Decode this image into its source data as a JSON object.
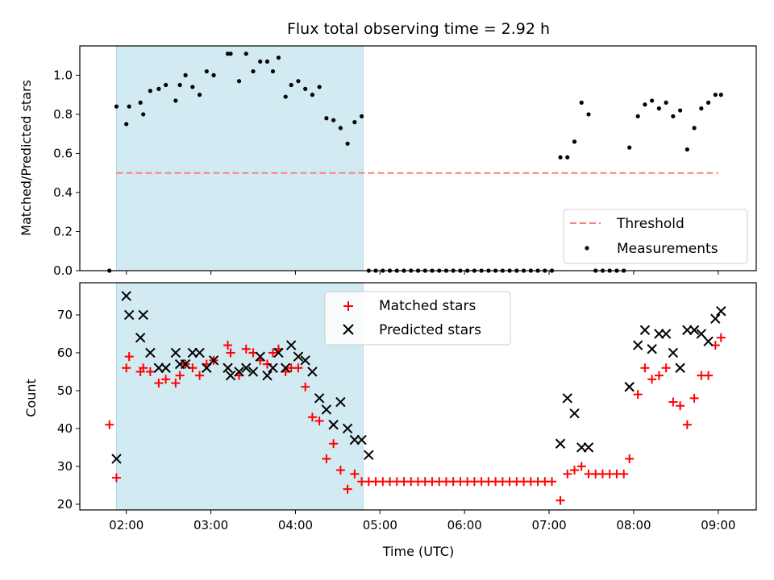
{
  "colors": {
    "shade": "#add8e6",
    "threshold": "#ff7f7f",
    "measurement": "#000000",
    "matched": "#ff0000",
    "predicted": "#000000"
  },
  "chart_data": [
    {
      "type": "scatter",
      "title": "Flux total observing time = 2.92 h",
      "xlabel": "",
      "ylabel": "Matched/Predicted stars",
      "xlim": [
        "01:27",
        "09:27"
      ],
      "ylim": [
        0,
        1.15
      ],
      "yticks": [
        "0.0",
        "0.2",
        "0.4",
        "0.6",
        "0.8",
        "1.0"
      ],
      "shaded_span": [
        "01:53",
        "04:48"
      ],
      "legend_position": "lower-right",
      "threshold": {
        "name": "Threshold",
        "value": 0.5,
        "x_range": [
          "01:53",
          "09:00"
        ]
      },
      "measurements": {
        "name": "Measurements",
        "points": [
          [
            "01:48",
            0.0
          ],
          [
            "01:53",
            0.84
          ],
          [
            "02:00",
            0.75
          ],
          [
            "02:02",
            0.84
          ],
          [
            "02:10",
            0.86
          ],
          [
            "02:12",
            0.8
          ],
          [
            "02:17",
            0.92
          ],
          [
            "02:23",
            0.93
          ],
          [
            "02:28",
            0.95
          ],
          [
            "02:35",
            0.87
          ],
          [
            "02:38",
            0.95
          ],
          [
            "02:42",
            1.0
          ],
          [
            "02:47",
            0.94
          ],
          [
            "02:52",
            0.9
          ],
          [
            "02:57",
            1.02
          ],
          [
            "03:02",
            1.0
          ],
          [
            "03:12",
            1.11
          ],
          [
            "03:14",
            1.11
          ],
          [
            "03:20",
            0.97
          ],
          [
            "03:25",
            1.11
          ],
          [
            "03:30",
            1.02
          ],
          [
            "03:35",
            1.07
          ],
          [
            "03:40",
            1.07
          ],
          [
            "03:44",
            1.02
          ],
          [
            "03:48",
            1.09
          ],
          [
            "03:53",
            0.89
          ],
          [
            "03:57",
            0.95
          ],
          [
            "04:02",
            0.97
          ],
          [
            "04:07",
            0.93
          ],
          [
            "04:12",
            0.9
          ],
          [
            "04:17",
            0.94
          ],
          [
            "04:22",
            0.78
          ],
          [
            "04:27",
            0.77
          ],
          [
            "04:32",
            0.73
          ],
          [
            "04:37",
            0.65
          ],
          [
            "04:42",
            0.76
          ],
          [
            "04:47",
            0.79
          ],
          [
            "04:52",
            0.0
          ],
          [
            "04:57",
            0.0
          ],
          [
            "05:02",
            0.0
          ],
          [
            "05:07",
            0.0
          ],
          [
            "05:12",
            0.0
          ],
          [
            "05:17",
            0.0
          ],
          [
            "05:22",
            0.0
          ],
          [
            "05:27",
            0.0
          ],
          [
            "05:32",
            0.0
          ],
          [
            "05:37",
            0.0
          ],
          [
            "05:42",
            0.0
          ],
          [
            "05:47",
            0.0
          ],
          [
            "05:52",
            0.0
          ],
          [
            "05:57",
            0.0
          ],
          [
            "06:02",
            0.0
          ],
          [
            "06:07",
            0.0
          ],
          [
            "06:12",
            0.0
          ],
          [
            "06:17",
            0.0
          ],
          [
            "06:22",
            0.0
          ],
          [
            "06:27",
            0.0
          ],
          [
            "06:32",
            0.0
          ],
          [
            "06:37",
            0.0
          ],
          [
            "06:42",
            0.0
          ],
          [
            "06:47",
            0.0
          ],
          [
            "06:52",
            0.0
          ],
          [
            "06:57",
            0.0
          ],
          [
            "07:02",
            0.0
          ],
          [
            "07:08",
            0.58
          ],
          [
            "07:13",
            0.58
          ],
          [
            "07:18",
            0.66
          ],
          [
            "07:23",
            0.86
          ],
          [
            "07:28",
            0.8
          ],
          [
            "07:33",
            0.0
          ],
          [
            "07:38",
            0.0
          ],
          [
            "07:43",
            0.0
          ],
          [
            "07:48",
            0.0
          ],
          [
            "07:53",
            0.0
          ],
          [
            "07:57",
            0.63
          ],
          [
            "08:03",
            0.79
          ],
          [
            "08:08",
            0.85
          ],
          [
            "08:13",
            0.87
          ],
          [
            "08:18",
            0.83
          ],
          [
            "08:23",
            0.86
          ],
          [
            "08:28",
            0.79
          ],
          [
            "08:33",
            0.82
          ],
          [
            "08:38",
            0.62
          ],
          [
            "08:43",
            0.73
          ],
          [
            "08:48",
            0.83
          ],
          [
            "08:53",
            0.86
          ],
          [
            "08:58",
            0.9
          ],
          [
            "09:02",
            0.9
          ]
        ]
      }
    },
    {
      "type": "scatter",
      "title": "",
      "xlabel": "Time (UTC)",
      "ylabel": "Count",
      "xlim": [
        "01:27",
        "09:27"
      ],
      "ylim": [
        18.5,
        78.5
      ],
      "yticks": [
        "20",
        "30",
        "40",
        "50",
        "60",
        "70"
      ],
      "xticks": [
        "02:00",
        "03:00",
        "04:00",
        "05:00",
        "06:00",
        "07:00",
        "08:00",
        "09:00"
      ],
      "shaded_span": [
        "01:53",
        "04:48"
      ],
      "legend_position": "upper-center",
      "series": [
        {
          "name": "Matched stars",
          "marker": "plus",
          "points": [
            [
              "01:48",
              41
            ],
            [
              "01:53",
              27
            ],
            [
              "02:00",
              56
            ],
            [
              "02:02",
              59
            ],
            [
              "02:10",
              55
            ],
            [
              "02:12",
              56
            ],
            [
              "02:17",
              55
            ],
            [
              "02:23",
              52
            ],
            [
              "02:28",
              53
            ],
            [
              "02:35",
              52
            ],
            [
              "02:38",
              54
            ],
            [
              "02:42",
              57
            ],
            [
              "02:47",
              56
            ],
            [
              "02:52",
              54
            ],
            [
              "02:57",
              57
            ],
            [
              "03:02",
              58
            ],
            [
              "03:12",
              62
            ],
            [
              "03:14",
              60
            ],
            [
              "03:20",
              54
            ],
            [
              "03:25",
              61
            ],
            [
              "03:30",
              60
            ],
            [
              "03:35",
              58
            ],
            [
              "03:40",
              57
            ],
            [
              "03:44",
              60
            ],
            [
              "03:48",
              61
            ],
            [
              "03:53",
              55
            ],
            [
              "03:57",
              56
            ],
            [
              "04:02",
              56
            ],
            [
              "04:07",
              51
            ],
            [
              "04:12",
              43
            ],
            [
              "04:17",
              42
            ],
            [
              "04:22",
              32
            ],
            [
              "04:27",
              36
            ],
            [
              "04:32",
              29
            ],
            [
              "04:37",
              24
            ],
            [
              "04:42",
              28
            ],
            [
              "04:47",
              26
            ],
            [
              "04:52",
              26
            ],
            [
              "04:57",
              26
            ],
            [
              "05:02",
              26
            ],
            [
              "05:07",
              26
            ],
            [
              "05:12",
              26
            ],
            [
              "05:17",
              26
            ],
            [
              "05:22",
              26
            ],
            [
              "05:27",
              26
            ],
            [
              "05:32",
              26
            ],
            [
              "05:37",
              26
            ],
            [
              "05:42",
              26
            ],
            [
              "05:47",
              26
            ],
            [
              "05:52",
              26
            ],
            [
              "05:57",
              26
            ],
            [
              "06:02",
              26
            ],
            [
              "06:07",
              26
            ],
            [
              "06:12",
              26
            ],
            [
              "06:17",
              26
            ],
            [
              "06:22",
              26
            ],
            [
              "06:27",
              26
            ],
            [
              "06:32",
              26
            ],
            [
              "06:37",
              26
            ],
            [
              "06:42",
              26
            ],
            [
              "06:47",
              26
            ],
            [
              "06:52",
              26
            ],
            [
              "06:57",
              26
            ],
            [
              "07:02",
              26
            ],
            [
              "07:08",
              21
            ],
            [
              "07:13",
              28
            ],
            [
              "07:18",
              29
            ],
            [
              "07:23",
              30
            ],
            [
              "07:28",
              28
            ],
            [
              "07:33",
              28
            ],
            [
              "07:38",
              28
            ],
            [
              "07:43",
              28
            ],
            [
              "07:48",
              28
            ],
            [
              "07:53",
              28
            ],
            [
              "07:57",
              32
            ],
            [
              "08:03",
              49
            ],
            [
              "08:08",
              56
            ],
            [
              "08:13",
              53
            ],
            [
              "08:18",
              54
            ],
            [
              "08:23",
              56
            ],
            [
              "08:28",
              47
            ],
            [
              "08:33",
              46
            ],
            [
              "08:38",
              41
            ],
            [
              "08:43",
              48
            ],
            [
              "08:48",
              54
            ],
            [
              "08:53",
              54
            ],
            [
              "08:58",
              62
            ],
            [
              "09:02",
              64
            ]
          ]
        },
        {
          "name": "Predicted stars",
          "marker": "x",
          "points": [
            [
              "01:53",
              32
            ],
            [
              "02:00",
              75
            ],
            [
              "02:02",
              70
            ],
            [
              "02:10",
              64
            ],
            [
              "02:12",
              70
            ],
            [
              "02:17",
              60
            ],
            [
              "02:23",
              56
            ],
            [
              "02:28",
              56
            ],
            [
              "02:35",
              60
            ],
            [
              "02:38",
              57
            ],
            [
              "02:42",
              57
            ],
            [
              "02:47",
              60
            ],
            [
              "02:52",
              60
            ],
            [
              "02:57",
              56
            ],
            [
              "03:02",
              58
            ],
            [
              "03:12",
              56
            ],
            [
              "03:14",
              54
            ],
            [
              "03:20",
              55
            ],
            [
              "03:25",
              56
            ],
            [
              "03:30",
              55
            ],
            [
              "03:35",
              59
            ],
            [
              "03:40",
              54
            ],
            [
              "03:44",
              56
            ],
            [
              "03:48",
              60
            ],
            [
              "03:53",
              56
            ],
            [
              "03:57",
              62
            ],
            [
              "04:02",
              59
            ],
            [
              "04:07",
              58
            ],
            [
              "04:12",
              55
            ],
            [
              "04:17",
              48
            ],
            [
              "04:22",
              45
            ],
            [
              "04:27",
              41
            ],
            [
              "04:32",
              47
            ],
            [
              "04:37",
              40
            ],
            [
              "04:42",
              37
            ],
            [
              "04:47",
              37
            ],
            [
              "04:52",
              33
            ],
            [
              "07:08",
              36
            ],
            [
              "07:13",
              48
            ],
            [
              "07:18",
              44
            ],
            [
              "07:23",
              35
            ],
            [
              "07:28",
              35
            ],
            [
              "07:57",
              51
            ],
            [
              "08:03",
              62
            ],
            [
              "08:08",
              66
            ],
            [
              "08:13",
              61
            ],
            [
              "08:18",
              65
            ],
            [
              "08:23",
              65
            ],
            [
              "08:28",
              60
            ],
            [
              "08:33",
              56
            ],
            [
              "08:38",
              66
            ],
            [
              "08:43",
              66
            ],
            [
              "08:48",
              65
            ],
            [
              "08:53",
              63
            ],
            [
              "08:58",
              69
            ],
            [
              "09:02",
              71
            ]
          ]
        }
      ]
    }
  ]
}
